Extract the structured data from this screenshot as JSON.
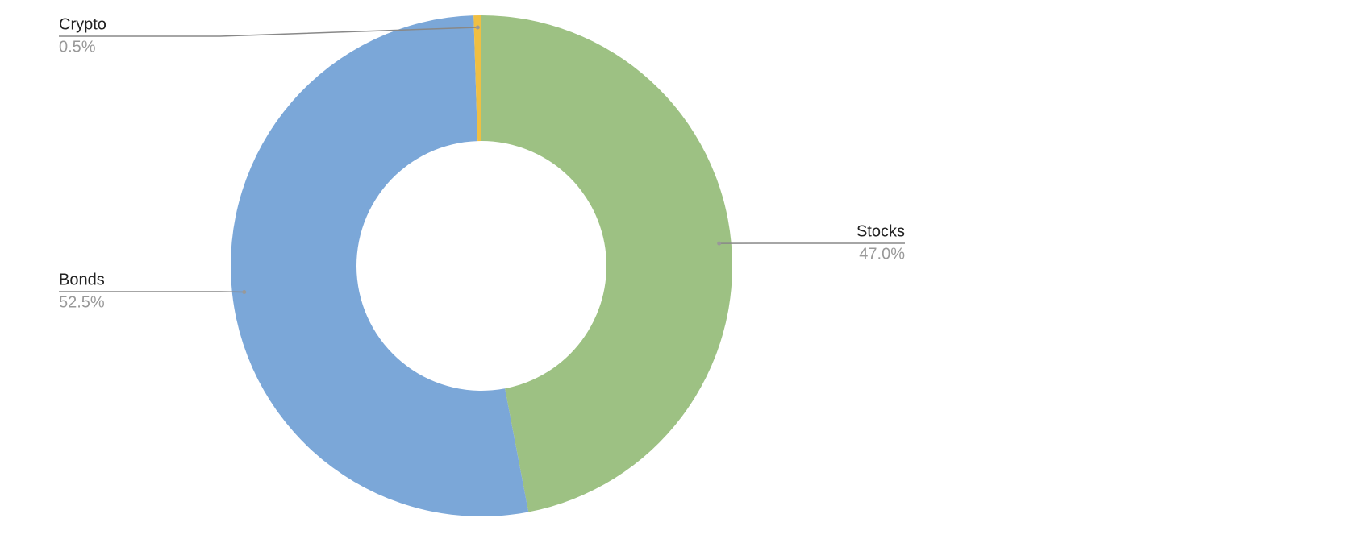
{
  "chart_data": {
    "type": "donut",
    "categories": [
      "Stocks",
      "Bonds",
      "Crypto"
    ],
    "values": [
      47.0,
      52.5,
      0.5
    ],
    "value_labels": [
      "47.0%",
      "52.5%",
      "0.5%"
    ],
    "colors": [
      "#9dc183",
      "#7ba7d8",
      "#f0bf42"
    ]
  }
}
